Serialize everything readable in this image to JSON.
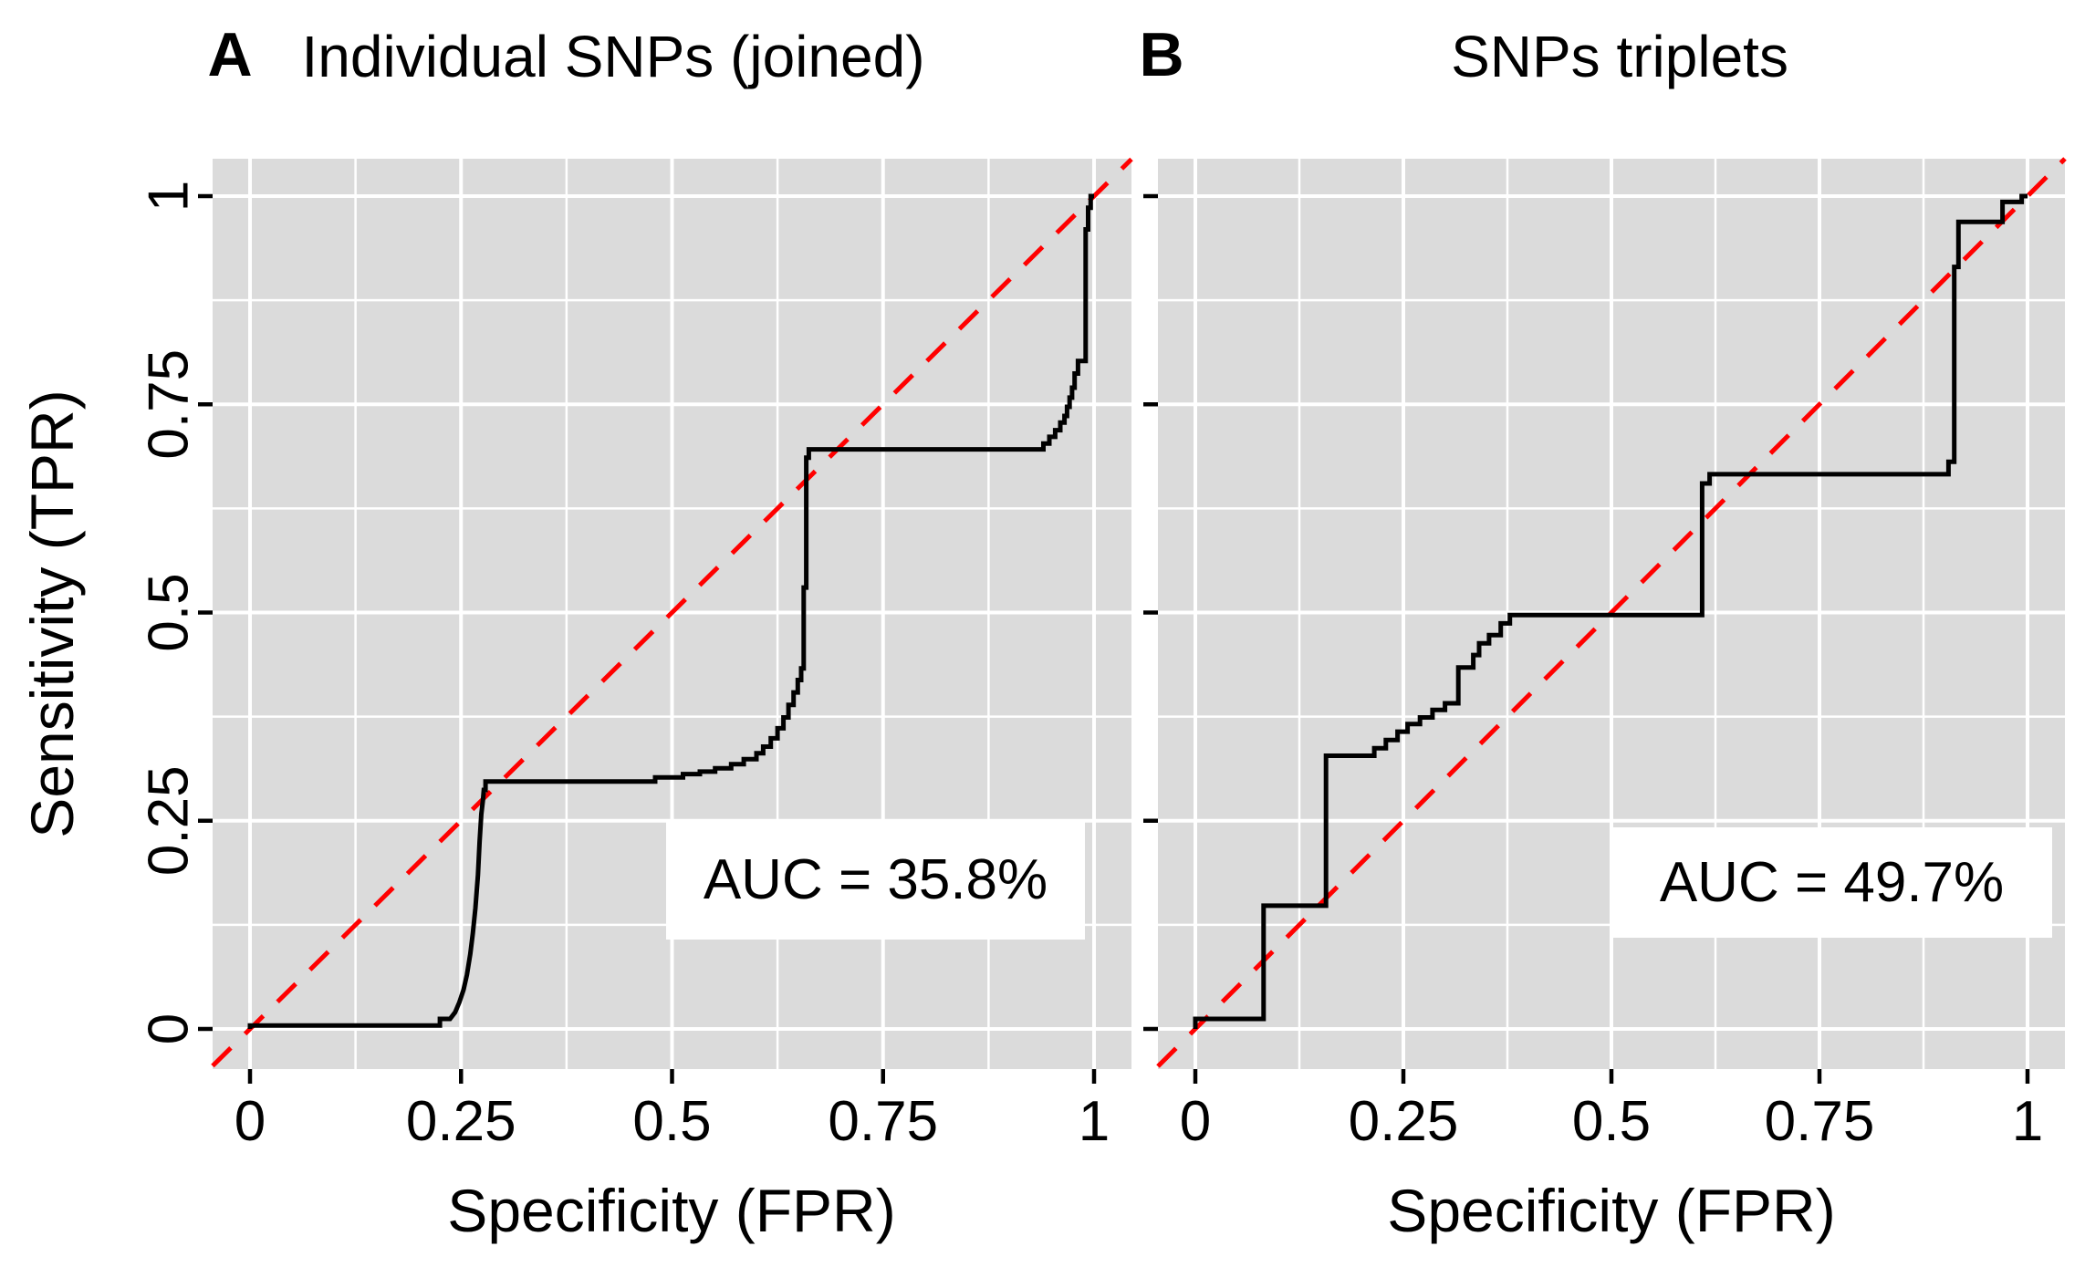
{
  "figure": {
    "x_axis_title": "Specificity (FPR)",
    "y_axis_title": "Sensitivity (TPR)"
  },
  "colors": {
    "figure_bg": "#ffffff",
    "panel_bg": "#dbdbdb",
    "grid": "#ffffff",
    "curve": "#000000",
    "diagonal": "#ff0000",
    "text": "#000000",
    "tick": "#000000",
    "annotation_bg": "#ffffff"
  },
  "chart_data": [
    {
      "type": "line",
      "panel_label": "A",
      "title": "Individual SNPs (joined)",
      "xlabel": "Specificity (FPR)",
      "ylabel": "Sensitivity (TPR)",
      "xlim": [
        0,
        1
      ],
      "ylim": [
        0,
        1
      ],
      "grid": "on",
      "x_tick_values": [
        0,
        0.25,
        0.5,
        0.75,
        1
      ],
      "x_tick_labels": [
        "0",
        "0.25",
        "0.5",
        "0.75",
        "1"
      ],
      "y_tick_values": [
        0,
        0.25,
        0.5,
        0.75,
        1
      ],
      "y_tick_labels": [
        "0",
        "0.25",
        "0.5",
        "0.75",
        "1"
      ],
      "minor_tick_step": 0.125,
      "auc": "35.8%",
      "annotation": "AUC = 35.8%",
      "diagonal_reference": true,
      "roc_points": [
        [
          0,
          0
        ],
        [
          0,
          0.004
        ],
        [
          0.225,
          0.004
        ],
        [
          0.225,
          0.012
        ],
        [
          0.237,
          0.012
        ],
        [
          0.243,
          0.02
        ],
        [
          0.248,
          0.032
        ],
        [
          0.253,
          0.047
        ],
        [
          0.257,
          0.065
        ],
        [
          0.261,
          0.09
        ],
        [
          0.264,
          0.115
        ],
        [
          0.267,
          0.145
        ],
        [
          0.27,
          0.185
        ],
        [
          0.272,
          0.225
        ],
        [
          0.274,
          0.258
        ],
        [
          0.276,
          0.275
        ],
        [
          0.277,
          0.287
        ],
        [
          0.279,
          0.287
        ],
        [
          0.279,
          0.297
        ],
        [
          0.48,
          0.297
        ],
        [
          0.48,
          0.302
        ],
        [
          0.513,
          0.302
        ],
        [
          0.513,
          0.306
        ],
        [
          0.533,
          0.306
        ],
        [
          0.533,
          0.309
        ],
        [
          0.551,
          0.309
        ],
        [
          0.551,
          0.313
        ],
        [
          0.57,
          0.313
        ],
        [
          0.57,
          0.318
        ],
        [
          0.585,
          0.318
        ],
        [
          0.585,
          0.324
        ],
        [
          0.6,
          0.324
        ],
        [
          0.6,
          0.331
        ],
        [
          0.608,
          0.331
        ],
        [
          0.608,
          0.339
        ],
        [
          0.617,
          0.339
        ],
        [
          0.617,
          0.349
        ],
        [
          0.625,
          0.349
        ],
        [
          0.625,
          0.361
        ],
        [
          0.632,
          0.361
        ],
        [
          0.632,
          0.374
        ],
        [
          0.638,
          0.374
        ],
        [
          0.638,
          0.389
        ],
        [
          0.644,
          0.389
        ],
        [
          0.644,
          0.404
        ],
        [
          0.649,
          0.404
        ],
        [
          0.649,
          0.419
        ],
        [
          0.653,
          0.419
        ],
        [
          0.653,
          0.433
        ],
        [
          0.656,
          0.433
        ],
        [
          0.656,
          0.53
        ],
        [
          0.659,
          0.53
        ],
        [
          0.659,
          0.686
        ],
        [
          0.662,
          0.686
        ],
        [
          0.662,
          0.696
        ],
        [
          0.667,
          0.696
        ],
        [
          0.94,
          0.696
        ],
        [
          0.94,
          0.703
        ],
        [
          0.947,
          0.703
        ],
        [
          0.947,
          0.711
        ],
        [
          0.954,
          0.711
        ],
        [
          0.954,
          0.719
        ],
        [
          0.96,
          0.719
        ],
        [
          0.96,
          0.728
        ],
        [
          0.965,
          0.728
        ],
        [
          0.965,
          0.736
        ],
        [
          0.968,
          0.736
        ],
        [
          0.968,
          0.747
        ],
        [
          0.971,
          0.747
        ],
        [
          0.971,
          0.758
        ],
        [
          0.974,
          0.758
        ],
        [
          0.974,
          0.77
        ],
        [
          0.977,
          0.77
        ],
        [
          0.977,
          0.787
        ],
        [
          0.981,
          0.787
        ],
        [
          0.981,
          0.802
        ],
        [
          0.99,
          0.802
        ],
        [
          0.99,
          0.96
        ],
        [
          0.993,
          0.96
        ],
        [
          0.993,
          0.986
        ],
        [
          0.996,
          0.986
        ],
        [
          0.996,
          1
        ],
        [
          1,
          1
        ]
      ]
    },
    {
      "type": "line",
      "panel_label": "B",
      "title": "SNPs triplets",
      "xlabel": "Specificity (FPR)",
      "ylabel": "",
      "xlim": [
        0,
        1
      ],
      "ylim": [
        0,
        1
      ],
      "grid": "on",
      "x_tick_values": [
        0,
        0.25,
        0.5,
        0.75,
        1
      ],
      "x_tick_labels": [
        "0",
        "0.25",
        "0.5",
        "0.75",
        "1"
      ],
      "y_tick_values": [
        0,
        0.25,
        0.5,
        0.75,
        1
      ],
      "y_tick_labels": [],
      "minor_tick_step": 0.125,
      "auc": "49.7%",
      "annotation": "AUC = 49.7%",
      "diagonal_reference": true,
      "roc_points": [
        [
          0,
          0
        ],
        [
          0,
          0.012
        ],
        [
          0.082,
          0.012
        ],
        [
          0.082,
          0.148
        ],
        [
          0.157,
          0.148
        ],
        [
          0.157,
          0.328
        ],
        [
          0.215,
          0.328
        ],
        [
          0.215,
          0.337
        ],
        [
          0.229,
          0.337
        ],
        [
          0.229,
          0.347
        ],
        [
          0.243,
          0.347
        ],
        [
          0.243,
          0.357
        ],
        [
          0.255,
          0.357
        ],
        [
          0.255,
          0.366
        ],
        [
          0.27,
          0.366
        ],
        [
          0.27,
          0.374
        ],
        [
          0.285,
          0.374
        ],
        [
          0.285,
          0.383
        ],
        [
          0.3,
          0.383
        ],
        [
          0.3,
          0.391
        ],
        [
          0.316,
          0.391
        ],
        [
          0.316,
          0.434
        ],
        [
          0.334,
          0.434
        ],
        [
          0.334,
          0.449
        ],
        [
          0.341,
          0.449
        ],
        [
          0.341,
          0.463
        ],
        [
          0.353,
          0.463
        ],
        [
          0.353,
          0.473
        ],
        [
          0.367,
          0.473
        ],
        [
          0.367,
          0.487
        ],
        [
          0.378,
          0.487
        ],
        [
          0.378,
          0.497
        ],
        [
          0.609,
          0.497
        ],
        [
          0.609,
          0.655
        ],
        [
          0.618,
          0.655
        ],
        [
          0.618,
          0.666
        ],
        [
          0.905,
          0.666
        ],
        [
          0.905,
          0.681
        ],
        [
          0.912,
          0.681
        ],
        [
          0.912,
          0.915
        ],
        [
          0.917,
          0.915
        ],
        [
          0.917,
          0.969
        ],
        [
          0.97,
          0.969
        ],
        [
          0.97,
          0.993
        ],
        [
          0.993,
          0.993
        ],
        [
          0.993,
          1
        ],
        [
          1,
          1
        ]
      ]
    }
  ]
}
